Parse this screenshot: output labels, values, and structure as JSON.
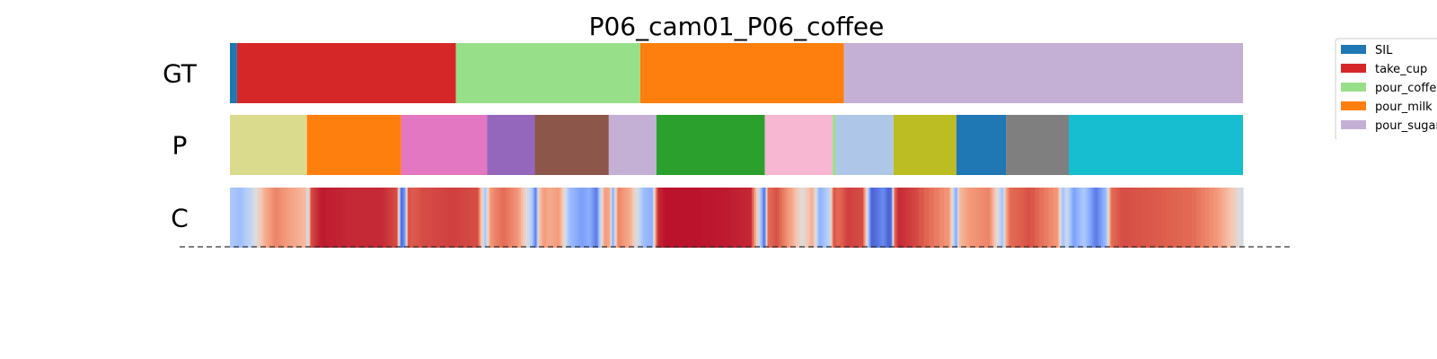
{
  "chart_data": {
    "type": "heatmap",
    "title": "P06_cam01_P06_coffee",
    "rows": [
      {
        "label": "GT",
        "kind": "segments",
        "segments": [
          {
            "action": "SIL",
            "start": 0.0,
            "end": 0.7,
            "color": "#1f77b4"
          },
          {
            "action": "take_cup",
            "start": 0.7,
            "end": 22.3,
            "color": "#d62728"
          },
          {
            "action": "pour_coffee",
            "start": 22.3,
            "end": 40.5,
            "color": "#98df8a"
          },
          {
            "action": "pour_milk",
            "start": 40.5,
            "end": 60.6,
            "color": "#ff7f0e"
          },
          {
            "action": "pour_sugar",
            "start": 60.6,
            "end": 100.0,
            "color": "#c5b0d5"
          }
        ]
      },
      {
        "label": "P",
        "kind": "segments",
        "segments": [
          {
            "start": 0.0,
            "end": 7.6,
            "color": "#dbdb8d"
          },
          {
            "start": 7.6,
            "end": 16.9,
            "color": "#ff7f0e"
          },
          {
            "start": 16.9,
            "end": 25.4,
            "color": "#e377c2"
          },
          {
            "start": 25.4,
            "end": 30.1,
            "color": "#9467bd"
          },
          {
            "start": 30.1,
            "end": 37.4,
            "color": "#8c564b"
          },
          {
            "start": 37.4,
            "end": 42.1,
            "color": "#c5b0d5"
          },
          {
            "start": 42.1,
            "end": 52.8,
            "color": "#2ca02c"
          },
          {
            "start": 52.8,
            "end": 59.5,
            "color": "#f7b6d2"
          },
          {
            "start": 59.5,
            "end": 59.8,
            "color": "#98df8a"
          },
          {
            "start": 59.8,
            "end": 65.5,
            "color": "#aec7e8"
          },
          {
            "start": 65.5,
            "end": 71.7,
            "color": "#bcbd22"
          },
          {
            "start": 71.7,
            "end": 76.6,
            "color": "#1f77b4"
          },
          {
            "start": 76.6,
            "end": 82.8,
            "color": "#7f7f7f"
          },
          {
            "start": 82.8,
            "end": 100.0,
            "color": "#17becf"
          }
        ]
      },
      {
        "label": "C",
        "kind": "confidence",
        "colormap": "coolwarm",
        "x": [
          0,
          1,
          2,
          2.8,
          3.5,
          4.5,
          5.5,
          6.5,
          7.5,
          7.7,
          8,
          9,
          12,
          15,
          16.5,
          16.9,
          17.3,
          17.6,
          18,
          19,
          22,
          24.5,
          25.2,
          25.7,
          26.2,
          27,
          28.5,
          29.8,
          30.2,
          30.5,
          31,
          31.5,
          32.5,
          33.5,
          34.7,
          35.5,
          36.2,
          37,
          37.5,
          37.8,
          38.3,
          39.5,
          40.8,
          41.7,
          42.1,
          42.3,
          43,
          46,
          49,
          51.5,
          52.8,
          53.1,
          54,
          55.5,
          56.5,
          57.5,
          58.2,
          59.2,
          59.6,
          60,
          61,
          62.5,
          63.3,
          64,
          64.5,
          65,
          65.3,
          65.6,
          66,
          68,
          71,
          71.7,
          72,
          73,
          75,
          76.3,
          76.6,
          77,
          79,
          81.7,
          82.2,
          82.6,
          83.3,
          84.3,
          85.5,
          86.5,
          87,
          88,
          92,
          95,
          97.5,
          99,
          100
        ],
        "confidence": [
          0.35,
          0.3,
          0.4,
          0.55,
          0.7,
          0.8,
          0.75,
          0.7,
          0.65,
          0.4,
          0.9,
          0.97,
          0.95,
          0.95,
          0.9,
          0.05,
          0.2,
          0.9,
          0.88,
          0.9,
          0.92,
          0.9,
          0.3,
          0.75,
          0.8,
          0.85,
          0.75,
          0.35,
          0.1,
          0.6,
          0.75,
          0.7,
          0.75,
          0.3,
          0.2,
          0.25,
          0.1,
          0.75,
          0.7,
          0.2,
          0.8,
          0.7,
          0.3,
          0.25,
          0.85,
          0.95,
          0.98,
          0.98,
          0.97,
          0.95,
          0.05,
          0.85,
          0.9,
          0.7,
          0.5,
          0.7,
          0.25,
          0.4,
          0.9,
          0.85,
          0.92,
          0.9,
          0.05,
          0.1,
          0.15,
          0.05,
          0.08,
          0.85,
          0.95,
          0.9,
          0.75,
          0.2,
          0.65,
          0.75,
          0.8,
          0.3,
          0.7,
          0.85,
          0.9,
          0.75,
          0.3,
          0.45,
          0.2,
          0.35,
          0.1,
          0.3,
          0.85,
          0.9,
          0.88,
          0.85,
          0.75,
          0.6,
          0.45
        ]
      }
    ],
    "legend": {
      "position": "top-right",
      "entries": [
        {
          "label": "SIL",
          "color": "#1f77b4"
        },
        {
          "label": "take_cup",
          "color": "#d62728"
        },
        {
          "label": "pour_coffee",
          "color": "#98df8a"
        },
        {
          "label": "pour_milk",
          "color": "#ff7f0e"
        },
        {
          "label": "pour_sugar",
          "color": "#c5b0d5"
        }
      ]
    }
  }
}
